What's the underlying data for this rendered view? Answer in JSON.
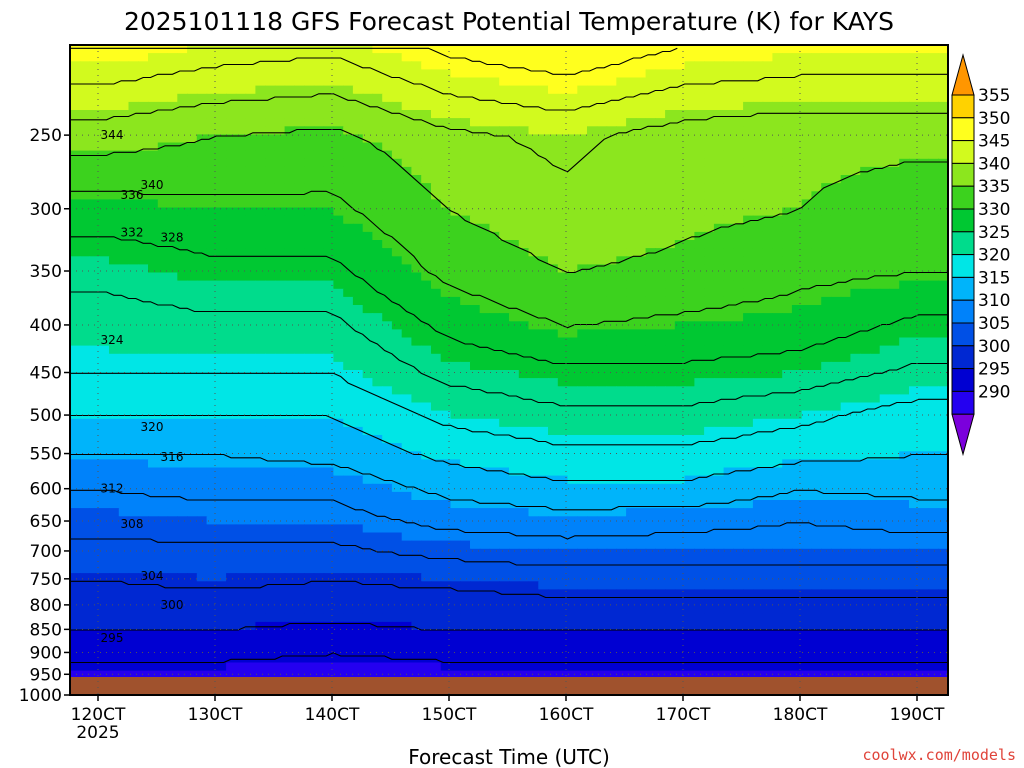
{
  "chart_data": {
    "type": "heatmap",
    "title": "2025101118 GFS Forecast Potential Temperature (K) for KAYS",
    "xlabel": "Forecast Time (UTC)",
    "ylabel": "",
    "credit": "coolwx.com/models",
    "x_ticks": [
      "120CT",
      "130CT",
      "140CT",
      "150CT",
      "160CT",
      "170CT",
      "180CT",
      "190CT"
    ],
    "x_year": "2025",
    "y_ticks": [
      250,
      300,
      350,
      400,
      450,
      500,
      550,
      600,
      650,
      700,
      750,
      800,
      850,
      900,
      950,
      1000
    ],
    "ylim": [
      1000,
      200
    ],
    "y_scale": "log-pressure",
    "grid": true,
    "colorbar": {
      "levels": [
        290,
        295,
        300,
        305,
        310,
        315,
        320,
        325,
        330,
        335,
        340,
        345,
        350,
        355
      ],
      "colors": [
        "#7b00dc",
        "#2400f0",
        "#0000d2",
        "#0028d2",
        "#0050e6",
        "#0082fa",
        "#00b4fa",
        "#00e6e6",
        "#00dc8c",
        "#00c832",
        "#3cd21e",
        "#8ce61e",
        "#d2fa1e",
        "#ffff1e",
        "#ffd200",
        "#ff9600"
      ]
    },
    "contour_interval": 4,
    "contour_labels": [
      {
        "x": "120CT",
        "p": 250,
        "v": 344
      },
      {
        "x": "120CT",
        "p": 290,
        "v": 336
      },
      {
        "x": "120CT",
        "p": 283,
        "v": 340
      },
      {
        "x": "120CT",
        "p": 322,
        "v": 328
      },
      {
        "x": "120CT",
        "p": 415,
        "v": 324
      },
      {
        "x": "120CT",
        "p": 655,
        "v": 308
      },
      {
        "x": "120CT",
        "p": 745,
        "v": 304
      },
      {
        "x": "120CT",
        "p": 800,
        "v": 300
      },
      {
        "x": "120CT",
        "p": 868,
        "v": 295
      },
      {
        "x": "120CT",
        "p": 318,
        "v": 332
      },
      {
        "x": "120CT",
        "p": 515,
        "v": 320
      },
      {
        "x": "120CT",
        "p": 555,
        "v": 316
      },
      {
        "x": "120CT",
        "p": 600,
        "v": 312
      }
    ],
    "series": [
      {
        "p_start": 850,
        "values": [
          300,
          300,
          299,
          300,
          300,
          300,
          300,
          300
        ]
      },
      {
        "p_start": 800,
        "values": [
          302,
          302,
          302,
          302,
          303,
          303,
          303,
          303
        ]
      },
      {
        "p_start": 750,
        "values": [
          304,
          305,
          304,
          305,
          306,
          306,
          306,
          306
        ]
      },
      {
        "p_start": 700,
        "values": [
          307,
          307,
          307,
          309,
          310,
          310,
          310,
          310
        ]
      },
      {
        "p_start": 650,
        "values": [
          309,
          310,
          310,
          313,
          314,
          313,
          312,
          313
        ]
      },
      {
        "p_start": 600,
        "values": [
          312,
          313,
          313,
          317,
          319,
          319,
          316,
          317
        ]
      },
      {
        "p_start": 550,
        "values": [
          316,
          316,
          317,
          321,
          323,
          323,
          321,
          320
        ]
      },
      {
        "p_start": 500,
        "values": [
          320,
          320,
          320,
          325,
          327,
          327,
          325,
          322
        ]
      },
      {
        "p_start": 450,
        "values": [
          324,
          324,
          324,
          329,
          331,
          331,
          330,
          327
        ]
      },
      {
        "p_start": 400,
        "values": [
          326,
          327,
          327,
          333,
          336,
          335,
          334,
          331
        ]
      },
      {
        "p_start": 350,
        "values": [
          329,
          331,
          331,
          337,
          340,
          339,
          337,
          336
        ]
      },
      {
        "p_start": 300,
        "values": [
          334,
          335,
          335,
          340,
          343,
          341,
          340,
          338
        ]
      },
      {
        "p_start": 250,
        "values": [
          342,
          340,
          339,
          343,
          345,
          342,
          341,
          341
        ]
      }
    ]
  }
}
